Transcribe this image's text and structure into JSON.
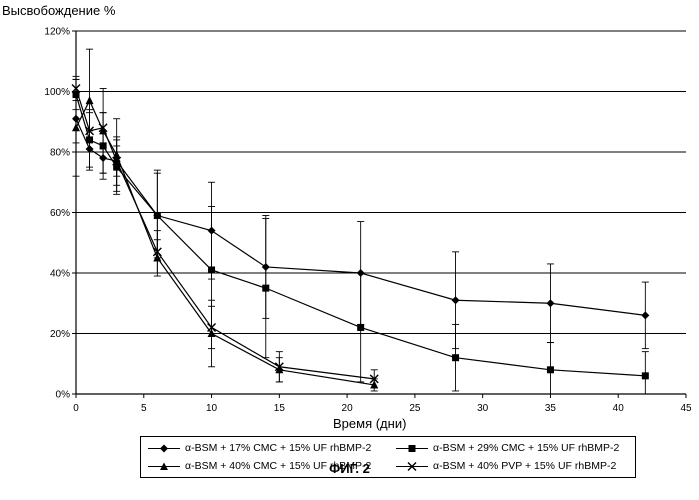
{
  "chart_data": {
    "type": "line",
    "ylabel": "Высвобождение %",
    "xlabel": "Время (дни)",
    "caption": "ФИГ. 2",
    "xlim": [
      0,
      45
    ],
    "ylim": [
      0,
      120
    ],
    "x_ticks": [
      0,
      5,
      10,
      15,
      20,
      25,
      30,
      35,
      40,
      45
    ],
    "y_ticks": [
      0,
      20,
      40,
      60,
      80,
      100,
      120
    ],
    "y_tick_labels": [
      "0%",
      "20%",
      "40%",
      "60%",
      "80%",
      "100%",
      "120%"
    ],
    "grid": "horizontal",
    "legend_position": "bottom",
    "series": [
      {
        "name": "α-BSM + 17% CMC + 15% UF rhBMP-2",
        "marker": "diamond",
        "points": [
          {
            "x": 0,
            "y": 91,
            "err": 8
          },
          {
            "x": 1,
            "y": 81,
            "err": 6
          },
          {
            "x": 2,
            "y": 78,
            "err": 5
          },
          {
            "x": 3,
            "y": 77,
            "err": 5
          },
          {
            "x": 6,
            "y": 59,
            "err": 15
          },
          {
            "x": 10,
            "y": 54,
            "err": 16
          },
          {
            "x": 14,
            "y": 42,
            "err": 17
          },
          {
            "x": 21,
            "y": 40,
            "err": 17
          },
          {
            "x": 28,
            "y": 31,
            "err": 16
          },
          {
            "x": 35,
            "y": 30,
            "err": 13
          },
          {
            "x": 42,
            "y": 26,
            "err": 11
          }
        ]
      },
      {
        "name": "α-BSM + 29% CMC + 15% UF rhBMP-2",
        "marker": "square",
        "points": [
          {
            "x": 0,
            "y": 99,
            "err": 5
          },
          {
            "x": 1,
            "y": 84,
            "err": 10
          },
          {
            "x": 2,
            "y": 82,
            "err": 11
          },
          {
            "x": 3,
            "y": 75,
            "err": 9
          },
          {
            "x": 6,
            "y": 59,
            "err": 14
          },
          {
            "x": 10,
            "y": 41,
            "err": 21
          },
          {
            "x": 14,
            "y": 35,
            "err": 23
          },
          {
            "x": 21,
            "y": 22,
            "err": 18
          },
          {
            "x": 28,
            "y": 12,
            "err": 11
          },
          {
            "x": 35,
            "y": 8,
            "err": 9
          },
          {
            "x": 42,
            "y": 6,
            "err": 8
          }
        ]
      },
      {
        "name": "α-BSM + 40% CMC + 15% UF rhBMP-2",
        "marker": "triangle",
        "points": [
          {
            "x": 0,
            "y": 88,
            "err": 16
          },
          {
            "x": 1,
            "y": 97,
            "err": 17
          },
          {
            "x": 2,
            "y": 87,
            "err": 14
          },
          {
            "x": 3,
            "y": 79,
            "err": 12
          },
          {
            "x": 6,
            "y": 45,
            "err": 6
          },
          {
            "x": 10,
            "y": 20,
            "err": 11
          },
          {
            "x": 15,
            "y": 8,
            "err": 4
          },
          {
            "x": 22,
            "y": 3,
            "err": 2
          }
        ]
      },
      {
        "name": "α-BSM + 40% PVP + 15% UF rhBMP-2",
        "marker": "x",
        "points": [
          {
            "x": 0,
            "y": 101,
            "err": 4
          },
          {
            "x": 1,
            "y": 87,
            "err": 6
          },
          {
            "x": 2,
            "y": 88,
            "err": 5
          },
          {
            "x": 3,
            "y": 77,
            "err": 8
          },
          {
            "x": 6,
            "y": 47,
            "err": 7
          },
          {
            "x": 10,
            "y": 22,
            "err": 7
          },
          {
            "x": 15,
            "y": 9,
            "err": 5
          },
          {
            "x": 22,
            "y": 5,
            "err": 3
          }
        ]
      }
    ]
  }
}
